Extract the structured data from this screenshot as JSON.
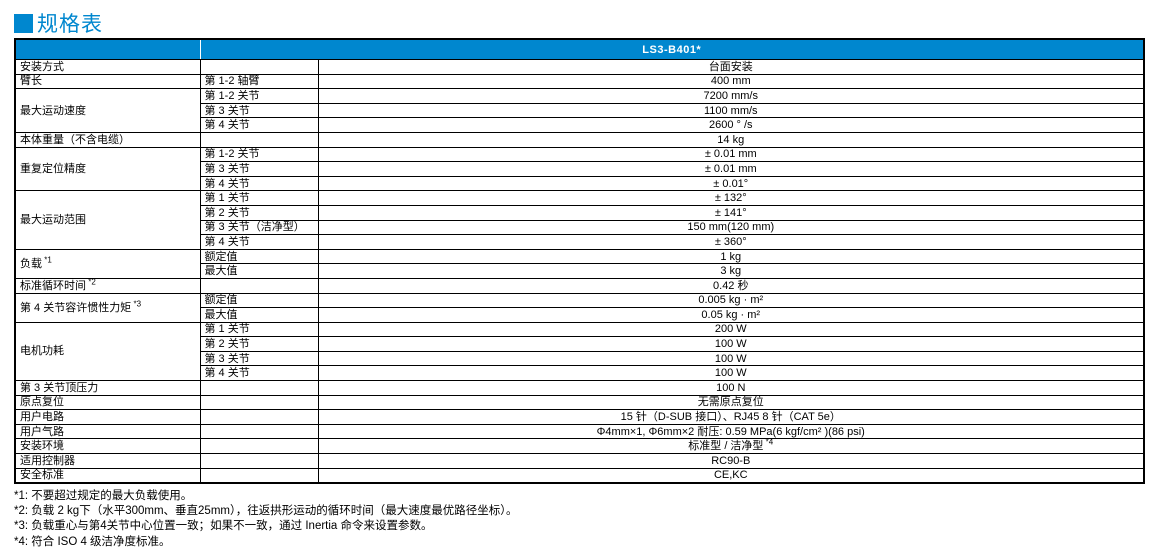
{
  "colors": {
    "accent": "#0087cf",
    "row_shade": "#dce6f2",
    "border": "#000000"
  },
  "title": {
    "text": "规格表"
  },
  "table": {
    "header": {
      "model": "LS3-B401*"
    },
    "rows": [
      {
        "group": "安装方式",
        "span": 1,
        "sub": "",
        "value": "台面安装",
        "shade": false
      },
      {
        "group": "臂长",
        "span": 1,
        "sub": "第 1-2 轴臂",
        "value": "400 mm",
        "shade": true
      },
      {
        "group": "最大运动速度",
        "span": 3,
        "sub": "第 1-2 关节",
        "value": "7200 mm/s",
        "shade": true
      },
      {
        "sub": "第 3 关节",
        "value": "1100 mm/s",
        "shade": true
      },
      {
        "sub": "第 4 关节",
        "value": "2600 ° /s",
        "shade": true
      },
      {
        "group": "本体重量（不含电缆）",
        "span": 1,
        "sub": "",
        "value": "14 kg",
        "shade": false
      },
      {
        "group": "重复定位精度",
        "span": 3,
        "sub": "第 1-2 关节",
        "value": "± 0.01 mm",
        "shade": true
      },
      {
        "sub": "第 3 关节",
        "value": "± 0.01 mm",
        "shade": true
      },
      {
        "sub": "第 4 关节",
        "value": "± 0.01°",
        "shade": true
      },
      {
        "group": "最大运动范围",
        "span": 4,
        "sub": "第 1 关节",
        "value": "± 132°",
        "shade": false
      },
      {
        "sub": "第 2 关节",
        "value": "± 141°",
        "shade": false
      },
      {
        "sub": "第 3 关节（洁净型）",
        "value": "150 mm(120 mm)",
        "shade": false
      },
      {
        "sub": "第 4 关节",
        "value": "± 360°",
        "shade": false
      },
      {
        "group": "负载",
        "gsup": "*1",
        "span": 2,
        "sub": "额定值",
        "value": "1 kg",
        "shade": true
      },
      {
        "sub": "最大值",
        "value": "3 kg",
        "shade": true
      },
      {
        "group": "标准循环时间",
        "gsup": "*2",
        "span": 1,
        "sub": "",
        "value": "0.42 秒",
        "shade": false
      },
      {
        "group": "第 4 关节容许惯性力矩",
        "gsup": "*3",
        "span": 2,
        "sub": "额定值",
        "value": "0.005 kg · m²",
        "shade": true
      },
      {
        "sub": "最大值",
        "value": "0.05 kg · m²",
        "shade": true
      },
      {
        "group": "电机功耗",
        "span": 4,
        "sub": "第 1 关节",
        "value": "200 W",
        "shade": false
      },
      {
        "sub": "第 2 关节",
        "value": "100 W",
        "shade": false
      },
      {
        "sub": "第 3 关节",
        "value": "100 W",
        "shade": false
      },
      {
        "sub": "第 4 关节",
        "value": "100 W",
        "shade": false
      },
      {
        "group": "第 3 关节顶压力",
        "span": 1,
        "sub": "",
        "value": "100 N",
        "shade": true
      },
      {
        "group": "原点复位",
        "span": 1,
        "sub": "",
        "value": "无需原点复位",
        "shade": false
      },
      {
        "group": "用户电路",
        "span": 1,
        "sub": "",
        "value": "15 针（D-SUB 接口）、RJ45 8 针（CAT 5e）",
        "shade": true
      },
      {
        "group": "用户气路",
        "span": 1,
        "sub": "",
        "value": "Φ4mm×1, Φ6mm×2  耐压: 0.59 MPa(6 kgf/cm² )(86 psi)",
        "shade": false
      },
      {
        "group": "安装环境",
        "span": 1,
        "sub": "",
        "value": "标准型 / 洁净型",
        "vsup": "*4",
        "shade": true
      },
      {
        "group": "适用控制器",
        "span": 1,
        "sub": "",
        "value": "RC90-B",
        "shade": false
      },
      {
        "group": "安全标准",
        "span": 1,
        "sub": "",
        "value": "CE,KC",
        "shade": true
      }
    ]
  },
  "footnotes": [
    "*1: 不要超过规定的最大负载使用。",
    "*2: 负载 2 kg下（水平300mm、垂直25mm），往返拱形运动的循环时间（最大速度最优路径坐标）。",
    "*3: 负载重心与第4关节中心位置一致；如果不一致，通过 Inertia 命令来设置参数。",
    "*4: 符合 ISO 4 级洁净度标准。"
  ]
}
